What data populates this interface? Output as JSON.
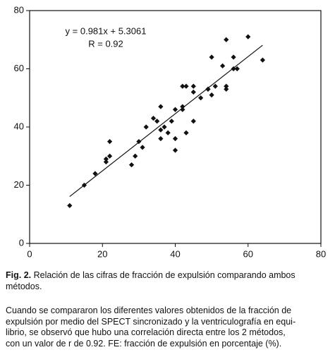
{
  "chart_data": {
    "type": "scatter",
    "annotations": [
      "y = 0.981x + 5.3061",
      "R = 0.92"
    ],
    "x": [
      11,
      15,
      18,
      21,
      21,
      22,
      22,
      28,
      29,
      30,
      31,
      32,
      34,
      35,
      36,
      36,
      36,
      37,
      38,
      39,
      40,
      40,
      40,
      42,
      42,
      42,
      43,
      43,
      45,
      45,
      45,
      47,
      49,
      49,
      50,
      50,
      51,
      53,
      54,
      54,
      54,
      56,
      56,
      57,
      60,
      64
    ],
    "values": [
      13,
      20,
      24,
      28,
      29,
      30,
      35,
      27,
      30,
      35,
      33,
      40,
      43,
      42,
      47,
      39,
      36,
      40,
      38,
      42,
      46,
      32,
      36,
      54,
      47,
      46,
      54,
      38,
      54,
      52,
      42,
      50,
      53,
      53,
      51,
      64,
      54,
      61,
      70,
      54,
      53,
      64,
      60,
      60,
      71,
      63
    ],
    "color": "#111111",
    "fit_line": {
      "x": [
        11,
        64
      ],
      "values": [
        16.1,
        68.1
      ]
    },
    "xlim": [
      0,
      80
    ],
    "ylim": [
      0,
      80
    ],
    "xticks": [
      0,
      20,
      40,
      60,
      80
    ],
    "yticks": [
      0,
      20,
      40,
      60,
      80
    ]
  },
  "caption": {
    "label": "Fig. 2.",
    "lines": [
      " Relación de las cifras de fracción de expulsión comparando ambos",
      "métodos."
    ]
  },
  "paragraph": {
    "lines": [
      "Cuando se compararon los diferentes valores obtenidos de la fracción de",
      "expulsión por medio del SPECT sincronizado y la ventriculografía en equi-",
      "librio, se observó que hubo una correlación directa entre los 2 métodos,",
      "con un valor de r de 0.92. FE: fracción de expulsión en porcentaje (%)."
    ]
  }
}
